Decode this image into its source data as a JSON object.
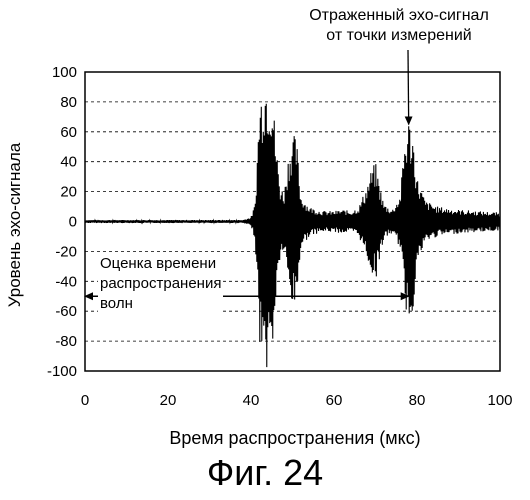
{
  "chart_data": {
    "type": "line",
    "xlabel": "Время распространения (мкс)",
    "ylabel": "Уровень эхо-сигнала",
    "xlim": [
      0,
      100
    ],
    "ylim": [
      -100,
      100
    ],
    "xticks": [
      0,
      20,
      40,
      60,
      80,
      100
    ],
    "yticks": [
      100,
      80,
      60,
      40,
      20,
      0,
      -20,
      -40,
      -60,
      -80,
      -100
    ],
    "grid": "horizontal dashed",
    "series": [
      {
        "style": "oscillating echo waveform",
        "envelope": [
          [
            0,
            1
          ],
          [
            38,
            1
          ],
          [
            40,
            3
          ],
          [
            41,
            12
          ],
          [
            42,
            80
          ],
          [
            43,
            100
          ],
          [
            44,
            100
          ],
          [
            45,
            95
          ],
          [
            46,
            55
          ],
          [
            47,
            25
          ],
          [
            48,
            20
          ],
          [
            49,
            45
          ],
          [
            50,
            60
          ],
          [
            51,
            55
          ],
          [
            52,
            18
          ],
          [
            54,
            10
          ],
          [
            56,
            8
          ],
          [
            58,
            7
          ],
          [
            60,
            7
          ],
          [
            62,
            8
          ],
          [
            64,
            7
          ],
          [
            66,
            10
          ],
          [
            68,
            25
          ],
          [
            69,
            35
          ],
          [
            70,
            40
          ],
          [
            71,
            25
          ],
          [
            72,
            12
          ],
          [
            74,
            8
          ],
          [
            76,
            18
          ],
          [
            77,
            55
          ],
          [
            78,
            70
          ],
          [
            79,
            60
          ],
          [
            80,
            30
          ],
          [
            82,
            14
          ],
          [
            85,
            10
          ],
          [
            90,
            8
          ],
          [
            95,
            7
          ],
          [
            100,
            6
          ]
        ]
      }
    ],
    "annotations": [
      {
        "text_lines": [
          "Отраженный эхо-сигнал",
          "от точки измерений"
        ],
        "points_to": [
          78,
          65
        ]
      },
      {
        "text_lines": [
          "Оценка времени",
          "распространения",
          "волн"
        ],
        "arrow_from": [
          0,
          -50
        ],
        "arrow_to": [
          78,
          -50
        ]
      }
    ]
  },
  "figure_label": "Фиг. 24"
}
